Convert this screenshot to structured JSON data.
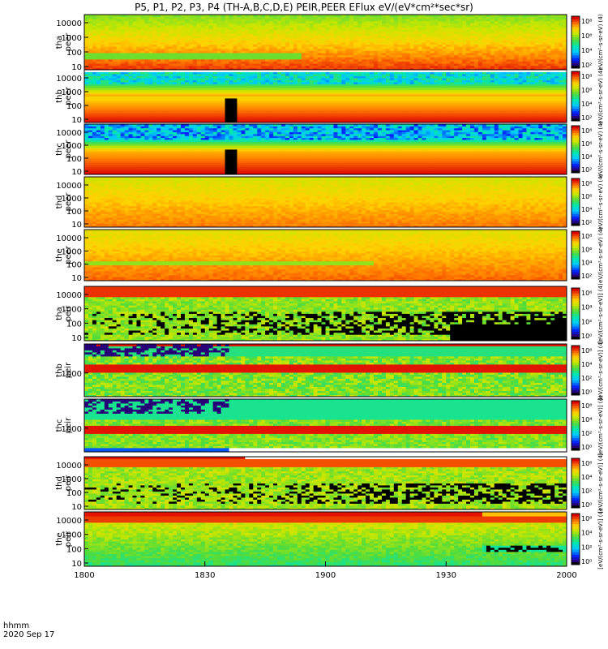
{
  "title": "P5, P1, P2, P3, P4 (TH-A,B,C,D,E) PEIR,PEER EFlux eV/(eV*cm²*sec*sr)",
  "footer": {
    "time_format": "hhmm",
    "date": "2020 Sep 17"
  },
  "colorbar_units": {
    "peer": "eV/(cm²-s-sr-eV) (4)",
    "peir": "[eV/(cm²-s-sr-eV)] (4)"
  },
  "colors": {
    "background": "#ffffff",
    "axes": "#000000"
  },
  "chart_data": {
    "type": "heatmap",
    "x_axis": {
      "ticks": [
        "1800",
        "1830",
        "1900",
        "1930",
        "2000"
      ],
      "range": [
        "18:00",
        "20:00"
      ]
    },
    "panels": [
      {
        "probe": "tha",
        "species": "peer",
        "label": "tha peer",
        "yticks": [
          "10",
          "100",
          "1000",
          "10000"
        ],
        "cbar_ticks": [
          "10²",
          "10⁴",
          "10⁶",
          "10⁸"
        ],
        "profile": "tha_peer"
      },
      {
        "probe": "thb",
        "species": "peer",
        "label": "thb peer",
        "yticks": [
          "10",
          "100",
          "1000",
          "10000"
        ],
        "cbar_ticks": [
          "10²",
          "10⁴",
          "10⁶",
          "10⁸"
        ],
        "profile": "thb_peer"
      },
      {
        "probe": "thc",
        "species": "peer",
        "label": "thc peer",
        "yticks": [
          "10",
          "100",
          "1000",
          "10000"
        ],
        "cbar_ticks": [
          "10²",
          "10⁴",
          "10⁶",
          "10⁸"
        ],
        "profile": "thc_peer"
      },
      {
        "probe": "thd",
        "species": "peer",
        "label": "thd peer",
        "yticks": [
          "10",
          "100",
          "1000",
          "10000"
        ],
        "cbar_ticks": [
          "10²",
          "10⁴",
          "10⁶",
          "10⁸"
        ],
        "profile": "thd_peer"
      },
      {
        "probe": "the",
        "species": "peer",
        "label": "the peer",
        "yticks": [
          "10",
          "100",
          "1000",
          "10000"
        ],
        "cbar_ticks": [
          "10²",
          "10⁴",
          "10⁶",
          "10⁸"
        ],
        "profile": "the_peer"
      },
      {
        "probe": "tha",
        "species": "peir",
        "label": "tha peir",
        "yticks": [
          "10",
          "100",
          "1000",
          "10000"
        ],
        "cbar_ticks": [
          "10⁰",
          "10²",
          "10⁴",
          "10⁶"
        ],
        "profile": "tha_peir"
      },
      {
        "probe": "thb",
        "species": "peir",
        "label": "thb peir",
        "yticks": [
          "1000"
        ],
        "cbar_ticks": [
          "10⁰",
          "10²",
          "10⁴",
          "10⁶"
        ],
        "profile": "thb_peir"
      },
      {
        "probe": "thc",
        "species": "peir",
        "label": "thc peir",
        "yticks": [
          "1000"
        ],
        "cbar_ticks": [
          "10⁰",
          "10²",
          "10⁴",
          "10⁶"
        ],
        "profile": "thc_peir"
      },
      {
        "probe": "thd",
        "species": "peir",
        "label": "thd peir",
        "yticks": [
          "10",
          "100",
          "1000",
          "10000"
        ],
        "cbar_ticks": [
          "10⁰",
          "10²",
          "10⁴",
          "10⁶"
        ],
        "profile": "thd_peir"
      },
      {
        "probe": "the",
        "species": "peir",
        "label": "the peir",
        "yticks": [
          "10",
          "100",
          "1000",
          "10000"
        ],
        "cbar_ticks": [
          "10⁰",
          "10²",
          "10⁴",
          "10⁶"
        ],
        "profile": "the_peir"
      }
    ]
  }
}
